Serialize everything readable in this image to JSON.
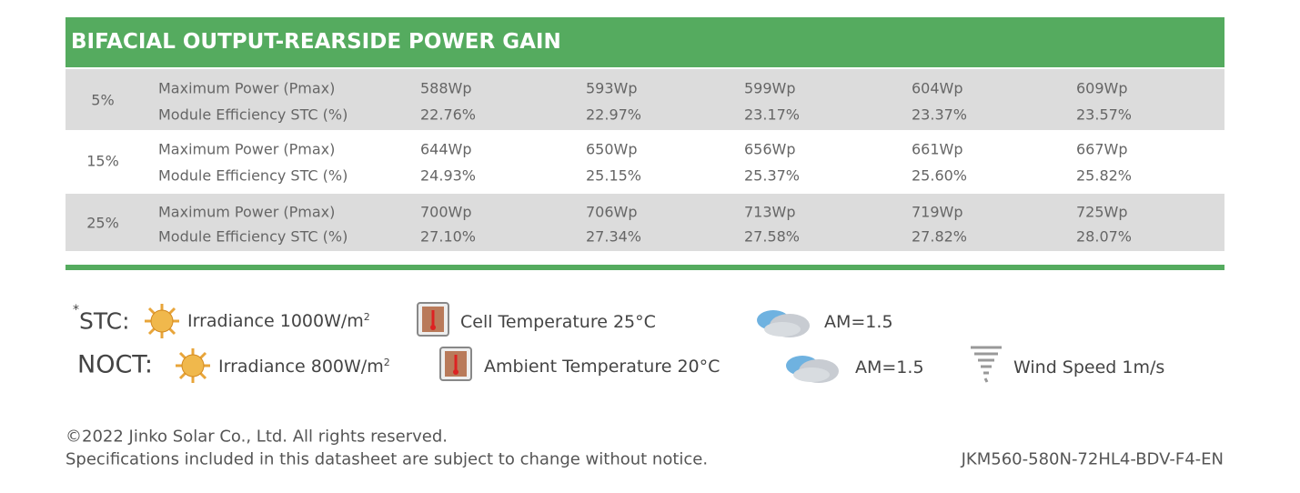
{
  "header": {
    "title": "BIFACIAL OUTPUT-REARSIDE POWER GAIN"
  },
  "table": {
    "rows": [
      {
        "gain": "5%",
        "power_label": "Maximum Power (Pmax)",
        "efficiency_label": "Module Efficiency STC (%)",
        "power": [
          "588Wp",
          "593Wp",
          "599Wp",
          "604Wp",
          "609Wp"
        ],
        "efficiency": [
          "22.76%",
          "22.97%",
          "23.17%",
          "23.37%",
          "23.57%"
        ]
      },
      {
        "gain": "15%",
        "power_label": "Maximum Power (Pmax)",
        "efficiency_label": "Module Efficiency STC (%)",
        "power": [
          "644Wp",
          "650Wp",
          "656Wp",
          "661Wp",
          "667Wp"
        ],
        "efficiency": [
          "24.93%",
          "25.15%",
          "25.37%",
          "25.60%",
          "25.82%"
        ]
      },
      {
        "gain": "25%",
        "power_label": "Maximum Power (Pmax)",
        "efficiency_label": "Module Efficiency STC (%)",
        "power": [
          "700Wp",
          "706Wp",
          "713Wp",
          "719Wp",
          "725Wp"
        ],
        "efficiency": [
          "27.10%",
          "27.34%",
          "27.58%",
          "27.82%",
          "28.07%"
        ]
      }
    ]
  },
  "conditions": {
    "stc": {
      "marker": "*",
      "label": "STC:",
      "irradiance": "Irradiance 1000W/m",
      "irradiance_unit_power": "2",
      "temperature": "Cell Temperature 25°C",
      "air_mass": "AM=1.5"
    },
    "noct": {
      "label": "NOCT:",
      "irradiance": "Irradiance 800W/m",
      "irradiance_unit_power": "2",
      "temperature": "Ambient Temperature 20°C",
      "air_mass": "AM=1.5",
      "wind": "Wind Speed 1m/s"
    }
  },
  "footer": {
    "copyright": "©2022 Jinko Solar Co., Ltd. All rights reserved.",
    "notice": "Specifications included in this datasheet are subject to change without notice.",
    "document_code": "JKM560-580N-72HL4-BDV-F4-EN"
  }
}
